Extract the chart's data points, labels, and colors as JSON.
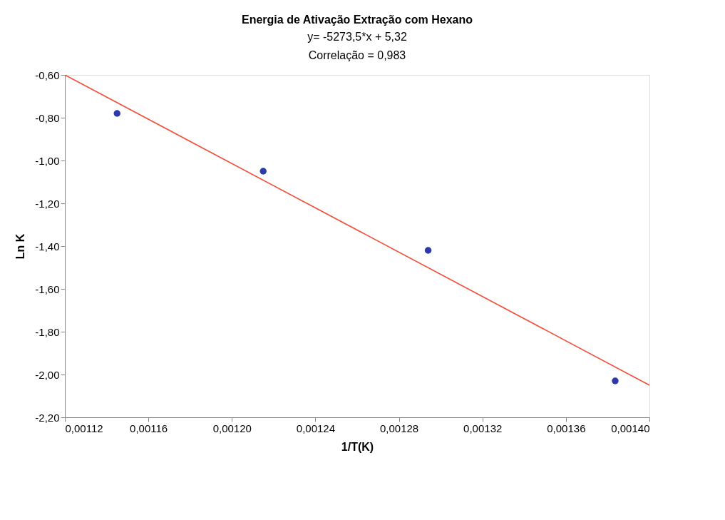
{
  "chart_data": {
    "type": "scatter",
    "title": "Energia de Ativação Extração com Hexano",
    "subtitle": "y= -5273,5*x + 5,32",
    "annotations": [
      "Correlação = 0,983"
    ],
    "xlabel": "1/T(K)",
    "ylabel": "Ln K",
    "x": [
      0.001145,
      0.001215,
      0.001294,
      0.0013836
    ],
    "series": [
      {
        "color": "#2b3aa8",
        "marker": "circle",
        "values": [
          -0.78,
          -1.05,
          -1.42,
          -2.03
        ]
      },
      {
        "type": "line",
        "color": "#f0503c",
        "line_style": "solid",
        "x": [
          0.00112,
          0.0014
        ],
        "values": [
          -0.6,
          -2.05
        ]
      }
    ],
    "xlim": [
      0.00112,
      0.0014
    ],
    "xticks": [
      {
        "value": 0.00112,
        "label": "0,00112"
      },
      {
        "value": 0.00116,
        "label": "0,00116"
      },
      {
        "value": 0.0012,
        "label": "0,00120"
      },
      {
        "value": 0.00124,
        "label": "0,00124"
      },
      {
        "value": 0.00128,
        "label": "0,00128"
      },
      {
        "value": 0.00132,
        "label": "0,00132"
      },
      {
        "value": 0.00136,
        "label": "0,00136"
      },
      {
        "value": 0.0014,
        "label": "0,00140"
      }
    ],
    "ylim": [
      -2.2,
      -0.6
    ],
    "yticks": [
      {
        "value": -2.2,
        "label": "-2,20"
      },
      {
        "value": -2.0,
        "label": "-2,00"
      },
      {
        "value": -1.8,
        "label": "-1,80"
      },
      {
        "value": -1.6,
        "label": "-1,60"
      },
      {
        "value": -1.4,
        "label": "-1,40"
      },
      {
        "value": -1.2,
        "label": "-1,20"
      },
      {
        "value": -1.0,
        "label": "-1,00"
      },
      {
        "value": -0.8,
        "label": "-0,80"
      },
      {
        "value": -0.6,
        "label": "-0,60"
      }
    ],
    "grid": false
  }
}
